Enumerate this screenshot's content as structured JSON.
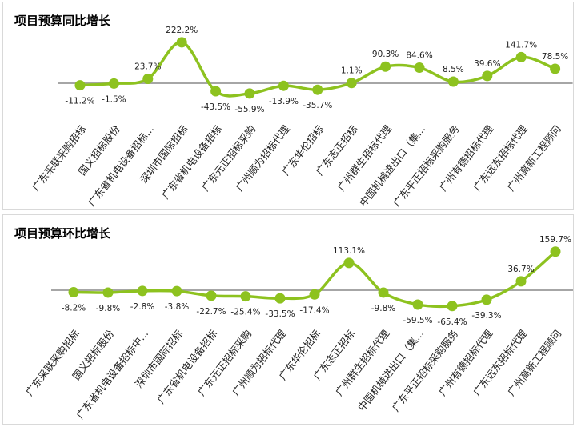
{
  "chart_data": [
    {
      "type": "line",
      "title": "项目预算同比增长",
      "categories": [
        "广东采联采购招标",
        "国义招标股份",
        "广东省机电设备招标...",
        "深圳市国际招标",
        "广东省机电设备招标",
        "广东元正招标采购",
        "广州顺为招标代理",
        "广东华伦招标",
        "广东志正招标",
        "广州群生招标代理",
        "中国机械进出口（集...",
        "广东平正招标采购服务",
        "广州有德招标代理",
        "广东远东招标代理",
        "广州高新工程顾问"
      ],
      "values": [
        -11.2,
        -1.5,
        23.7,
        222.2,
        -43.5,
        -55.9,
        -13.9,
        -35.7,
        1.1,
        90.3,
        84.6,
        8.5,
        39.6,
        141.7,
        78.5
      ],
      "labels": [
        "-11.2%",
        "-1.5%",
        "23.7%",
        "222.2%",
        "-43.5%",
        "-55.9%",
        "-13.9%",
        "-35.7%",
        "1.1%",
        "90.3%",
        "84.6%",
        "8.5%",
        "39.6%",
        "141.7%",
        "78.5%"
      ],
      "line_color": "#8dc21f",
      "baseline_color": "#a6a6a6",
      "grid": false,
      "legend": "none"
    },
    {
      "type": "line",
      "title": "项目预算环比增长",
      "categories": [
        "广东采联采购招标",
        "国义招标股份",
        "广东省机电设备招标中...",
        "深圳市国际招标",
        "广东省机电设备招标",
        "广东元正招标采购",
        "广州顺为招标代理",
        "广东华伦招标",
        "广东志正招标",
        "广州群生招标代理",
        "中国机械进出口（集...",
        "广东平正招标采购服务",
        "广州有德招标代理",
        "广东远东招标代理",
        "广州高新工程顾问"
      ],
      "values": [
        -8.2,
        -9.8,
        -2.8,
        -3.8,
        -22.7,
        -25.4,
        -33.5,
        -17.4,
        113.1,
        -9.8,
        -59.5,
        -65.4,
        -39.3,
        36.7,
        159.7
      ],
      "labels": [
        "-8.2%",
        "-9.8%",
        "-2.8%",
        "-3.8%",
        "-22.7%",
        "-25.4%",
        "-33.5%",
        "-17.4%",
        "113.1%",
        "-9.8%",
        "-59.5%",
        "-65.4%",
        "-39.3%",
        "36.7%",
        "159.7%"
      ],
      "line_color": "#8dc21f",
      "baseline_color": "#a6a6a6",
      "grid": false,
      "legend": "none"
    }
  ]
}
